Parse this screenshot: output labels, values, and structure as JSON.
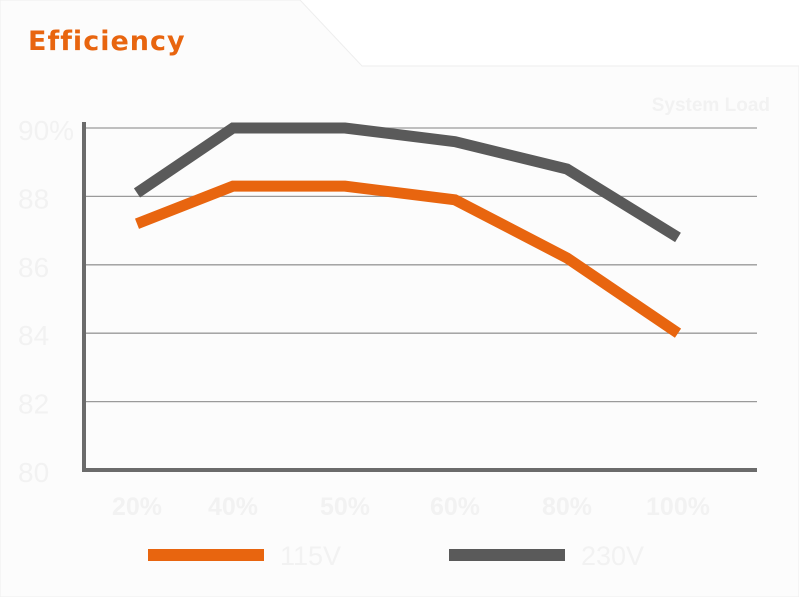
{
  "header": {
    "title": "Efficiency"
  },
  "colors": {
    "accent": "#e8650f",
    "series_gray": "#5a5a5a",
    "grid": "#9a9a9a",
    "axis": "#6b6b6b",
    "faint_text": "#f2f2f2"
  },
  "chart_data": {
    "type": "line",
    "title": "Efficiency",
    "xlabel": "System Load",
    "ylabel": "",
    "categories": [
      "20%",
      "40%",
      "50%",
      "60%",
      "80%",
      "100%"
    ],
    "y_ticks": [
      "80",
      "82",
      "84",
      "86",
      "88",
      "90%"
    ],
    "y_tick_values": [
      80,
      82,
      84,
      86,
      88,
      90
    ],
    "ylim": [
      80,
      90
    ],
    "grid": true,
    "legend_position": "bottom",
    "series": [
      {
        "name": "115V",
        "color": "#e8650f",
        "values": [
          87.2,
          88.3,
          88.3,
          87.9,
          86.2,
          84.0
        ]
      },
      {
        "name": "230V",
        "color": "#5a5a5a",
        "values": [
          88.1,
          90.0,
          90.0,
          89.6,
          88.8,
          86.8
        ]
      }
    ]
  }
}
